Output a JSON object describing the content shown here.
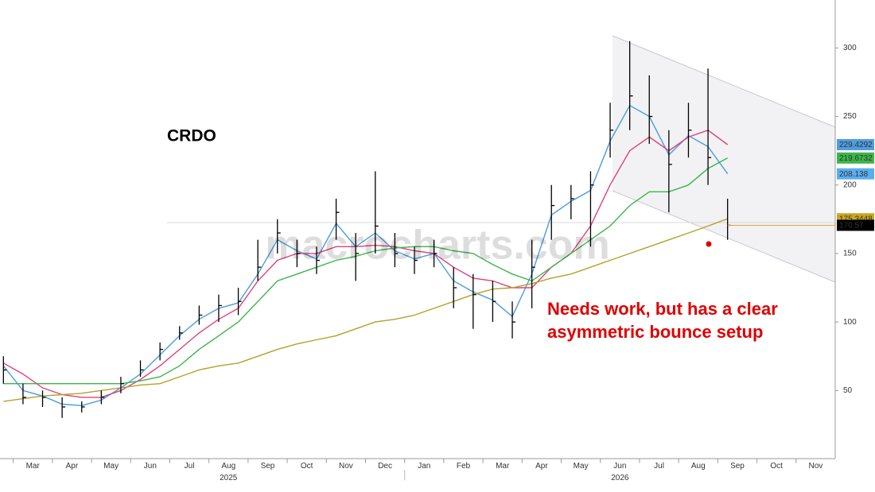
{
  "chart_data": {
    "type": "ohlc",
    "title": "CRDO",
    "annotation": [
      "Needs work, but has a clear",
      "asymmetric bounce setup"
    ],
    "watermark": "macrocharts.com",
    "categories": [
      null,
      "Mar",
      null,
      "Apr",
      null,
      "May",
      null,
      "Jun",
      null,
      "Jul",
      null,
      "Aug",
      null,
      "Sep",
      null,
      "Oct",
      null,
      "Nov",
      null,
      "Dec",
      null,
      "Jan",
      null,
      "Feb",
      null,
      "Mar",
      null,
      "Apr",
      null,
      "May",
      null,
      "Jun",
      null,
      "Jul",
      null,
      "Aug",
      null,
      "Sep",
      null,
      "Oct",
      null,
      "Nov",
      null
    ],
    "years": [
      "2025",
      "2026"
    ],
    "high": [
      75,
      55,
      50,
      45,
      42,
      50,
      60,
      72,
      85,
      97,
      112,
      120,
      125,
      160,
      175,
      160,
      155,
      190,
      165,
      210,
      165,
      155,
      160,
      140,
      135,
      130,
      115,
      160,
      200,
      200,
      210,
      260,
      305,
      280,
      240,
      260,
      285,
      190,
      null,
      null,
      null,
      null,
      null
    ],
    "low": [
      55,
      40,
      38,
      30,
      34,
      40,
      48,
      60,
      72,
      87,
      98,
      100,
      105,
      130,
      150,
      140,
      135,
      160,
      130,
      150,
      140,
      135,
      140,
      110,
      95,
      100,
      88,
      110,
      160,
      175,
      155,
      220,
      240,
      230,
      180,
      220,
      200,
      160,
      null,
      null,
      null,
      null,
      null
    ],
    "close": [
      65,
      45,
      45,
      38,
      38,
      45,
      55,
      65,
      80,
      92,
      105,
      112,
      115,
      140,
      165,
      150,
      145,
      180,
      150,
      170,
      150,
      145,
      150,
      125,
      120,
      115,
      100,
      140,
      185,
      190,
      200,
      240,
      265,
      250,
      215,
      240,
      220,
      170.57,
      null,
      null,
      null,
      null,
      null
    ],
    "bar_color": "#000000",
    "series": [
      {
        "color": "#4a9be0",
        "values": [
          68,
          50,
          46,
          40,
          39,
          43,
          52,
          62,
          76,
          90,
          102,
          110,
          114,
          135,
          160,
          152,
          146,
          172,
          155,
          165,
          152,
          146,
          150,
          130,
          122,
          116,
          104,
          135,
          178,
          188,
          196,
          232,
          258,
          250,
          222,
          236,
          228,
          208.138,
          null,
          null,
          null,
          null,
          null
        ]
      },
      {
        "color": "#e0407a",
        "values": [
          70,
          62,
          52,
          47,
          45,
          45,
          50,
          58,
          68,
          80,
          92,
          102,
          110,
          130,
          145,
          150,
          150,
          155,
          155,
          156,
          155,
          152,
          150,
          140,
          132,
          130,
          125,
          125,
          140,
          150,
          170,
          200,
          225,
          235,
          225,
          235,
          240,
          229.4292,
          null,
          null,
          null,
          null,
          null
        ]
      },
      {
        "color": "#3cb54a",
        "values": [
          55,
          55,
          55,
          55,
          55,
          55,
          55,
          57,
          60,
          68,
          80,
          90,
          100,
          115,
          130,
          135,
          140,
          145,
          148,
          152,
          154,
          155,
          155,
          152,
          150,
          142,
          135,
          130,
          140,
          150,
          160,
          170,
          185,
          195,
          195,
          200,
          212,
          219.6732,
          null,
          null,
          null,
          null,
          null
        ]
      },
      {
        "color": "#b5a02a",
        "values": [
          42,
          44,
          46,
          47,
          48,
          50,
          52,
          54,
          55,
          60,
          65,
          68,
          70,
          75,
          80,
          84,
          87,
          90,
          95,
          100,
          102,
          105,
          110,
          115,
          120,
          124,
          125,
          128,
          132,
          135,
          140,
          145,
          150,
          155,
          160,
          165,
          170,
          175.3448,
          null,
          null,
          null,
          null,
          null
        ]
      }
    ],
    "last_values": [
      229.4292,
      219.6732,
      208.138,
      175.3448,
      170.57
    ],
    "last_value_colors": [
      "#4f9de0",
      "#3cb54a",
      "#5aaef0",
      "#c8a820",
      "#000000"
    ],
    "last_value_text_colors": [
      "#000000",
      "#000000",
      "#000000",
      "#000000",
      "#ffffff"
    ],
    "ylim": [
      0,
      335
    ],
    "yticks": [
      50,
      100,
      150,
      200,
      250,
      300
    ]
  }
}
